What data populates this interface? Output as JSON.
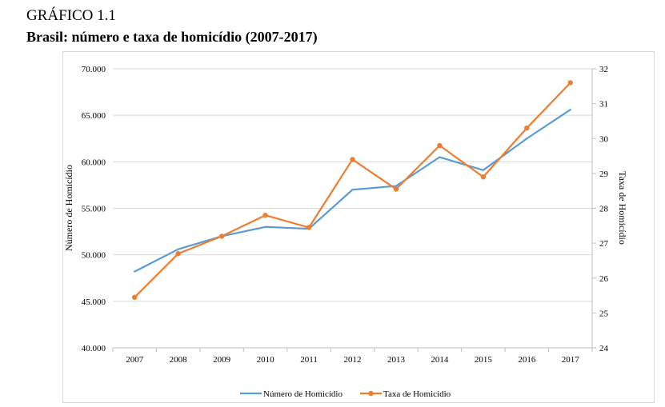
{
  "header": {
    "label": "GRÁFICO 1.1",
    "title": "Brasil: número e taxa de homicídio (2007-2017)"
  },
  "chart_data": {
    "type": "line",
    "title": "Brasil: número e taxa de homicídio (2007-2017)",
    "x": [
      "2007",
      "2008",
      "2009",
      "2010",
      "2011",
      "2012",
      "2013",
      "2014",
      "2015",
      "2016",
      "2017"
    ],
    "ylabel": "Número de Homicídio",
    "y2label": "Taxa de Homicídio",
    "ylim": [
      40000,
      70000
    ],
    "y2lim": [
      24,
      32
    ],
    "yticks": [
      "40.000",
      "45.000",
      "50.000",
      "55.000",
      "60.000",
      "65.000",
      "70.000"
    ],
    "y2ticks": [
      "24",
      "25",
      "26",
      "27",
      "28",
      "29",
      "30",
      "31",
      "32"
    ],
    "grid": true,
    "legend": "bottom",
    "series": [
      {
        "name": "Número de Homicídio",
        "axis": "left",
        "color": "#5b9bd5",
        "markers": false,
        "values": [
          48200,
          50600,
          52000,
          53000,
          52800,
          57000,
          57400,
          60500,
          59100,
          62500,
          65600
        ]
      },
      {
        "name": "Taxa de Homicídio",
        "axis": "right",
        "color": "#ed7d31",
        "markers": true,
        "values": [
          25.45,
          26.7,
          27.2,
          27.8,
          27.45,
          29.4,
          28.55,
          29.8,
          28.9,
          30.3,
          31.6
        ]
      }
    ]
  }
}
